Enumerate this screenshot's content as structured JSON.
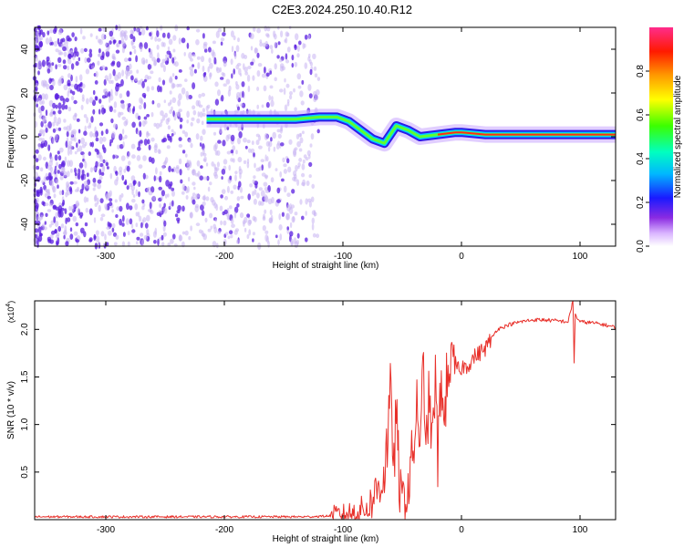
{
  "title": "C2E3.2024.250.10.40.R12",
  "colors": {
    "snr_line": "#e8302a",
    "axis": "#000000",
    "scatter": "#5a1ee0",
    "scatter_light": "#c9b4f2"
  },
  "chart_data": [
    {
      "id": "spectrogram",
      "type": "heatmap",
      "xlabel": "Height of straight line (km)",
      "ylabel": "Frequency (Hz)",
      "xlim": [
        -360,
        130
      ],
      "ylim": [
        -50,
        50
      ],
      "x_ticks": [
        -300,
        -200,
        -100,
        0,
        100
      ],
      "y_ticks": [
        -40,
        -20,
        0,
        20,
        40
      ],
      "x_tick_labels": [
        "-300",
        "-200",
        "-100",
        "0",
        "100"
      ],
      "y_tick_labels": [
        "-40",
        "-20",
        "0",
        "20",
        "40"
      ],
      "colorbar": {
        "label": "Normalized spectral amplitude",
        "range": [
          0,
          1
        ],
        "ticks": [
          0.0,
          0.2,
          0.4,
          0.6,
          0.8
        ],
        "tick_labels": [
          "0.0",
          "0.2",
          "0.4",
          "0.6",
          "0.8"
        ],
        "colormap": "rainbow"
      },
      "noise_region_x": [
        -360,
        -120
      ],
      "signal_trace": {
        "x": [
          -215,
          -200,
          -180,
          -160,
          -140,
          -120,
          -105,
          -95,
          -85,
          -75,
          -65,
          -55,
          -45,
          -35,
          -20,
          -5,
          0,
          20,
          60,
          95,
          130
        ],
        "y": [
          8,
          8,
          8,
          8,
          8,
          9,
          9,
          7,
          3,
          -1,
          -3,
          5,
          3,
          0,
          1,
          2,
          2,
          1,
          1,
          1,
          1
        ]
      }
    },
    {
      "id": "snr",
      "type": "line",
      "xlabel": "Height of straight line (km)",
      "ylabel": "SNR (10 * v/v)",
      "y_multiplier_label": "(x10",
      "y_multiplier_exp": "4",
      "y_multiplier_close": ")",
      "xlim": [
        -360,
        130
      ],
      "ylim": [
        0,
        2.3
      ],
      "x_ticks": [
        -300,
        -200,
        -100,
        0,
        100
      ],
      "y_ticks": [
        0.5,
        1.0,
        1.5,
        2.0
      ],
      "x_tick_labels": [
        "-300",
        "-200",
        "-100",
        "0",
        "100"
      ],
      "y_tick_labels": [
        "0.5",
        "1.0",
        "1.5",
        "2.0"
      ],
      "series": [
        {
          "name": "SNR",
          "x": [
            -360,
            -300,
            -200,
            -130,
            -110,
            -100,
            -90,
            -80,
            -75,
            -70,
            -65,
            -62,
            -60,
            -57,
            -55,
            -52,
            -50,
            -47,
            -45,
            -42,
            -40,
            -37,
            -35,
            -32,
            -30,
            -27,
            -25,
            -22,
            -20,
            -17,
            -15,
            -12,
            -10,
            -7,
            -5,
            -2,
            0,
            5,
            10,
            15,
            20,
            25,
            30,
            40,
            50,
            60,
            70,
            80,
            90,
            94,
            95,
            96,
            100,
            110,
            120,
            130
          ],
          "y": [
            0.03,
            0.03,
            0.03,
            0.03,
            0.04,
            0.05,
            0.08,
            0.12,
            0.2,
            0.35,
            0.5,
            0.9,
            1.3,
            0.6,
            1.1,
            0.3,
            0.25,
            0.2,
            0.35,
            0.6,
            0.8,
            1.3,
            0.5,
            1.8,
            0.6,
            1.4,
            0.7,
            1.5,
            0.6,
            1.6,
            0.9,
            1.55,
            1.7,
            1.5,
            1.65,
            1.55,
            1.6,
            1.62,
            1.7,
            1.75,
            1.8,
            1.9,
            2.0,
            2.05,
            2.08,
            2.1,
            2.1,
            2.09,
            2.08,
            2.3,
            1.65,
            2.15,
            2.08,
            2.07,
            2.05,
            2.02
          ]
        }
      ]
    }
  ]
}
